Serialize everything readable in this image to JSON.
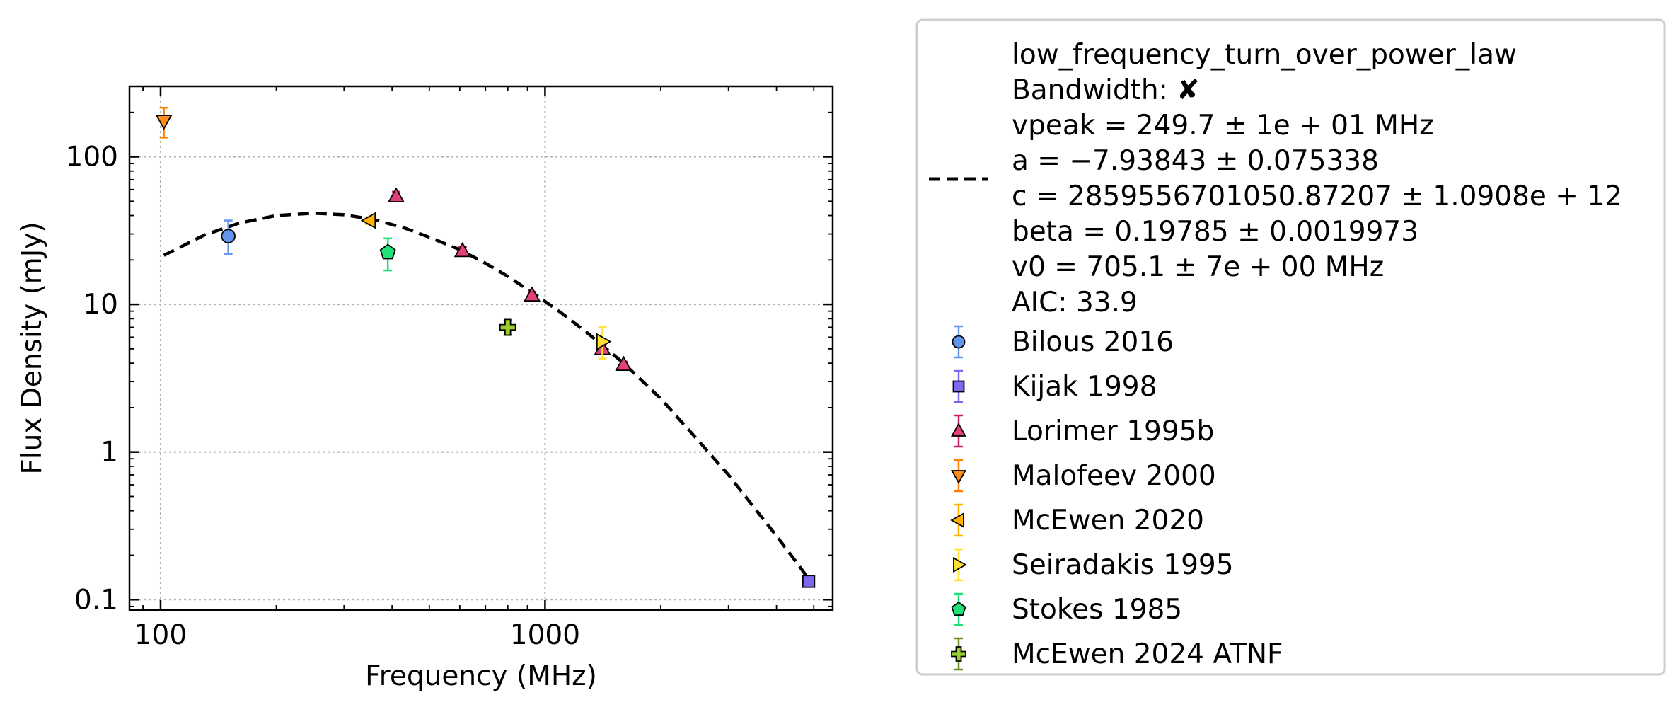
{
  "chart_data": {
    "type": "scatter",
    "xlabel": "Frequency (MHz)",
    "ylabel": "Flux Density (mJy)",
    "xscale": "log",
    "yscale": "log",
    "xlim": [
      83,
      5600
    ],
    "ylim": [
      0.085,
      300
    ],
    "xticks": [
      {
        "value": 100,
        "label": "100"
      },
      {
        "value": 1000,
        "label": "1000"
      }
    ],
    "yticks": [
      {
        "value": 0.1,
        "label": "0.1"
      },
      {
        "value": 1,
        "label": "1"
      },
      {
        "value": 10,
        "label": "10"
      },
      {
        "value": 100,
        "label": "100"
      }
    ],
    "grid": true,
    "legend_position": "outside-right",
    "fit": {
      "name": "low_frequency_turn_over_power_law",
      "style": "dashed",
      "color": "#000000",
      "legend_lines": [
        "low_frequency_turn_over_power_law",
        "Bandwidth: ✘",
        "vpeak = 249.7 ± 1e + 01 MHz",
        "a = −7.93843 ± 0.075338",
        "c = 2859556701050.87207 ± 1.0908e + 12",
        "beta = 0.19785 ± 0.0019973",
        "v0 = 705.1 ± 7e + 00 MHz",
        "AIC: 33.9"
      ],
      "points": [
        [
          102,
          21.5
        ],
        [
          130,
          29.5
        ],
        [
          160,
          35.5
        ],
        [
          200,
          40
        ],
        [
          250,
          41.5
        ],
        [
          300,
          40.5
        ],
        [
          360,
          37.5
        ],
        [
          430,
          33
        ],
        [
          500,
          28.5
        ],
        [
          600,
          23.5
        ],
        [
          700,
          19
        ],
        [
          800,
          15.5
        ],
        [
          950,
          11.5
        ],
        [
          1100,
          8.8
        ],
        [
          1300,
          6.3
        ],
        [
          1600,
          4.0
        ],
        [
          2000,
          2.3
        ],
        [
          2500,
          1.2
        ],
        [
          3000,
          0.7
        ],
        [
          3500,
          0.42
        ],
        [
          4000,
          0.27
        ],
        [
          4500,
          0.18
        ],
        [
          4900,
          0.133
        ]
      ]
    },
    "series": [
      {
        "name": "Bilous 2016",
        "marker": "circle",
        "color": "#6495ed",
        "errcolor": "#6495ed",
        "points": [
          {
            "x": 150,
            "y": 29,
            "err": [
              22,
              37
            ]
          }
        ]
      },
      {
        "name": "Kijak 1998",
        "marker": "square",
        "color": "#7b68ee",
        "errcolor": "#7b68ee",
        "points": [
          {
            "x": 4850,
            "y": 0.133,
            "err": [
              0.122,
              0.144
            ]
          }
        ]
      },
      {
        "name": "Lorimer 1995b",
        "marker": "triangle-up",
        "color": "#e0407b",
        "errcolor": "#c71f66",
        "points": [
          {
            "x": 410,
            "y": 54,
            "err": [
              50,
              58
            ]
          },
          {
            "x": 610,
            "y": 23,
            "err": [
              21.5,
              24.5
            ]
          },
          {
            "x": 925,
            "y": 11.5,
            "err": [
              10.8,
              12.2
            ]
          },
          {
            "x": 1410,
            "y": 5.0,
            "err": [
              4.7,
              5.3
            ]
          },
          {
            "x": 1600,
            "y": 3.9,
            "err": [
              3.7,
              4.1
            ]
          }
        ]
      },
      {
        "name": "Malofeev 2000",
        "marker": "triangle-down",
        "color": "#ff8c1a",
        "errcolor": "#ff7f00",
        "points": [
          {
            "x": 102,
            "y": 175,
            "err": [
              135,
              215
            ]
          }
        ]
      },
      {
        "name": "McEwen 2020",
        "marker": "triangle-left",
        "color": "#ffb000",
        "errcolor": "#ffb000",
        "points": [
          {
            "x": 350,
            "y": 37,
            "err": [
              35,
              39
            ]
          }
        ]
      },
      {
        "name": "Seiradakis 1995",
        "marker": "triangle-right",
        "color": "#ffe033",
        "errcolor": "#ffe033",
        "points": [
          {
            "x": 1410,
            "y": 5.6,
            "err": [
              4.3,
              7.0
            ]
          }
        ]
      },
      {
        "name": "Stokes 1985",
        "marker": "pentagon",
        "color": "#20e07a",
        "errcolor": "#20e07a",
        "points": [
          {
            "x": 390,
            "y": 22.5,
            "err": [
              17,
              28
            ]
          }
        ]
      },
      {
        "name": "McEwen 2024 ATNF",
        "marker": "plus",
        "color": "#9acd32",
        "errcolor": "#6b8e23",
        "points": [
          {
            "x": 800,
            "y": 7.0,
            "err": [
              6.2,
              7.8
            ]
          }
        ]
      }
    ]
  }
}
